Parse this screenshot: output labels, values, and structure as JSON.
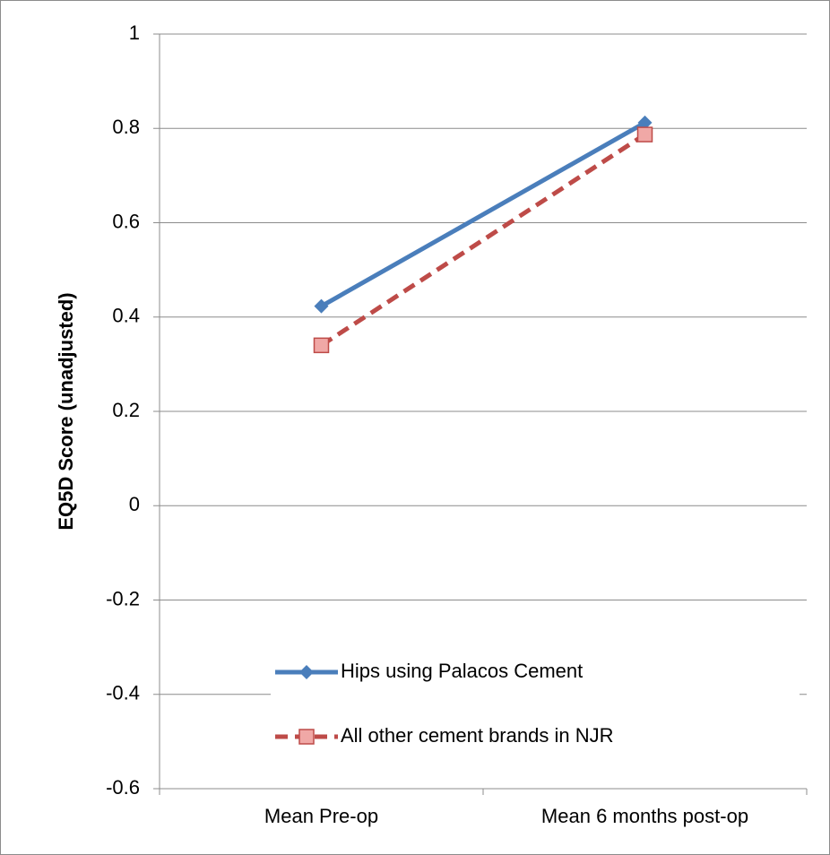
{
  "chart_data": {
    "type": "line",
    "y_label": "EQ5D Score (unadjusted)",
    "categories": [
      "Mean Pre-op",
      "Mean 6 months post-op"
    ],
    "series": [
      {
        "name": "Hips using Palacos Cement",
        "color": "#4a7ebb",
        "marker": "diamond",
        "dash": false,
        "values": [
          0.423,
          0.812
        ]
      },
      {
        "name": "All other cement brands in NJR",
        "color": "#be4b48",
        "marker": "square",
        "dash": true,
        "values": [
          0.34,
          0.787
        ]
      }
    ],
    "ylim": [
      -0.6,
      1
    ],
    "yticks": [
      -0.6,
      -0.4,
      -0.2,
      0,
      0.2,
      0.4,
      0.6,
      0.8,
      1
    ],
    "grid": true,
    "legend": "lower right"
  }
}
